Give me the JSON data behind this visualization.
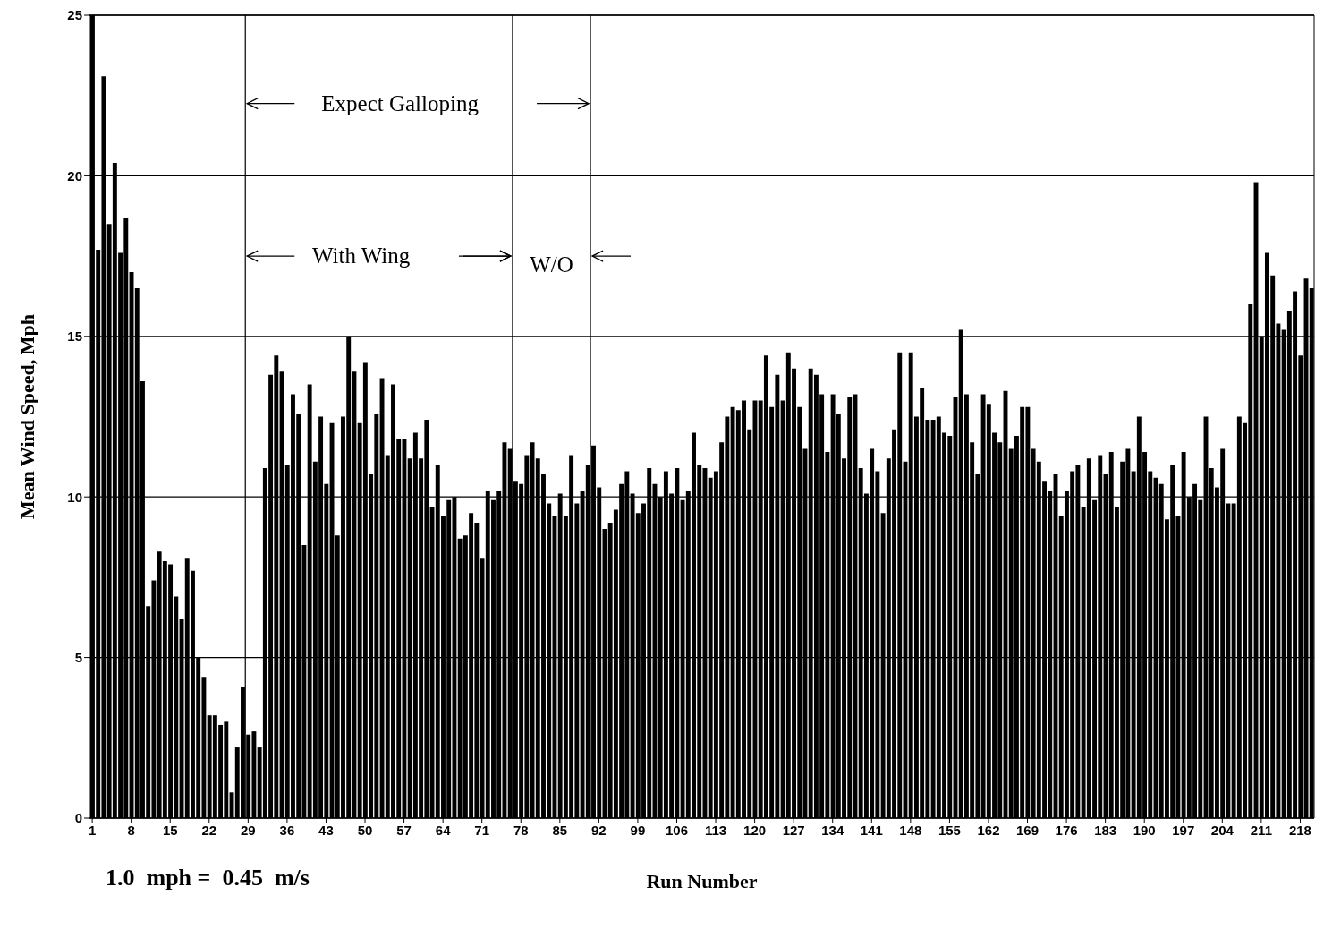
{
  "chart_data": {
    "type": "bar",
    "xlabel": "Run Number",
    "ylabel": "Mean Wind Speed, Mph",
    "color": "#000000",
    "grid": "y",
    "x": [
      1,
      2,
      3,
      4,
      5,
      6,
      7,
      8,
      9,
      10,
      11,
      12,
      13,
      14,
      15,
      16,
      17,
      18,
      19,
      20,
      21,
      22,
      23,
      24,
      25,
      26,
      27,
      28,
      29,
      30,
      31,
      32,
      33,
      34,
      35,
      36,
      37,
      38,
      39,
      40,
      41,
      42,
      43,
      44,
      45,
      46,
      47,
      48,
      49,
      50,
      51,
      52,
      53,
      54,
      55,
      56,
      57,
      58,
      59,
      60,
      61,
      62,
      63,
      64,
      65,
      66,
      67,
      68,
      69,
      70,
      71,
      72,
      73,
      74,
      75,
      76,
      77,
      78,
      79,
      80,
      81,
      82,
      83,
      84,
      85,
      86,
      87,
      88,
      89,
      90,
      91,
      92,
      93,
      94,
      95,
      96,
      97,
      98,
      99,
      100,
      101,
      102,
      103,
      104,
      105,
      106,
      107,
      108,
      109,
      110,
      111,
      112,
      113,
      114,
      115,
      116,
      117,
      118,
      119,
      120,
      121,
      122,
      123,
      124,
      125,
      126,
      127,
      128,
      129,
      130,
      131,
      132,
      133,
      134,
      135,
      136,
      137,
      138,
      139,
      140,
      141,
      142,
      143,
      144,
      145,
      146,
      147,
      148,
      149,
      150,
      151,
      152,
      153,
      154,
      155,
      156,
      157,
      158,
      159,
      160,
      161,
      162,
      163,
      164,
      165,
      166,
      167,
      168,
      169,
      170,
      171,
      172,
      173,
      174,
      175,
      176,
      177,
      178,
      179,
      180,
      181,
      182,
      183,
      184,
      185,
      186,
      187,
      188,
      189,
      190,
      191,
      192,
      193,
      194,
      195,
      196,
      197,
      198,
      199,
      200,
      201,
      202,
      203,
      204,
      205,
      206,
      207,
      208,
      209,
      210,
      211,
      212,
      213,
      214,
      215,
      216,
      217,
      218,
      219,
      220
    ],
    "values": [
      25,
      17.7,
      23.1,
      18.5,
      20.4,
      17.6,
      18.7,
      17.0,
      16.5,
      13.6,
      6.6,
      7.4,
      8.3,
      8.0,
      7.9,
      6.9,
      6.2,
      8.1,
      7.7,
      5.0,
      4.4,
      3.2,
      3.2,
      2.9,
      3.0,
      0.8,
      2.2,
      4.1,
      2.6,
      2.7,
      2.2,
      10.9,
      13.8,
      14.4,
      13.9,
      11.0,
      13.2,
      12.6,
      8.5,
      13.5,
      11.1,
      12.5,
      10.4,
      12.3,
      8.8,
      12.5,
      15.0,
      13.9,
      12.3,
      14.2,
      10.7,
      12.6,
      13.7,
      11.3,
      13.5,
      11.8,
      11.8,
      11.2,
      12.0,
      11.2,
      12.4,
      9.7,
      11.0,
      9.4,
      9.9,
      10.0,
      8.7,
      8.8,
      9.5,
      9.2,
      8.1,
      10.2,
      9.9,
      10.2,
      11.7,
      11.5,
      10.5,
      10.4,
      11.3,
      11.7,
      11.2,
      10.7,
      9.8,
      9.4,
      10.1,
      9.4,
      11.3,
      9.8,
      10.2,
      11.0,
      11.6,
      10.3,
      9.0,
      9.2,
      9.6,
      10.4,
      10.8,
      10.1,
      9.5,
      9.8,
      10.9,
      10.4,
      10.0,
      10.8,
      10.1,
      10.9,
      9.9,
      10.2,
      12.0,
      11.0,
      10.9,
      10.6,
      10.8,
      11.7,
      12.5,
      12.8,
      12.7,
      13.0,
      12.1,
      13.0,
      13.0,
      14.4,
      12.8,
      13.8,
      13.0,
      14.5,
      14.0,
      12.8,
      11.5,
      14.0,
      13.8,
      13.2,
      11.4,
      13.2,
      12.6,
      11.2,
      13.1,
      13.2,
      10.9,
      10.1,
      11.5,
      10.8,
      9.5,
      11.2,
      12.1,
      14.5,
      11.1,
      14.5,
      12.5,
      13.4,
      12.4,
      12.4,
      12.5,
      12.0,
      11.9,
      13.1,
      15.2,
      13.2,
      11.7,
      10.7,
      13.2,
      12.9,
      12.0,
      11.7,
      13.3,
      11.5,
      11.9,
      12.8,
      12.8,
      11.5,
      11.1,
      10.5,
      10.2,
      10.7,
      9.4,
      10.2,
      10.8,
      11.0,
      9.7,
      11.2,
      9.9,
      11.3,
      10.7,
      11.4,
      9.7,
      11.1,
      11.5,
      10.8,
      12.5,
      11.4,
      10.8,
      10.6,
      10.4,
      9.3,
      11.0,
      9.4,
      11.4,
      10.0,
      10.4,
      9.9,
      12.5,
      10.9,
      10.3,
      11.5,
      9.8,
      9.8,
      12.5,
      12.3,
      16.0,
      19.8,
      15.0,
      17.6,
      16.9,
      15.4,
      15.2,
      15.8,
      16.4,
      14.4,
      16.8,
      16.5
    ],
    "xlim": [
      0.5,
      220.5
    ],
    "xticks": [
      1,
      8,
      15,
      22,
      29,
      36,
      43,
      50,
      57,
      64,
      71,
      78,
      85,
      92,
      99,
      106,
      113,
      120,
      127,
      134,
      141,
      148,
      155,
      162,
      169,
      176,
      183,
      190,
      197,
      204,
      211,
      218
    ],
    "ylim": [
      0,
      25
    ],
    "yticks": [
      0,
      5,
      10,
      15,
      20,
      25
    ],
    "ref_lines": [
      {
        "axis": "x",
        "value": 28.5,
        "color": "#000000"
      },
      {
        "axis": "x",
        "value": 76.5,
        "color": "#000000"
      },
      {
        "axis": "x",
        "value": 90.5,
        "color": "#000000"
      }
    ],
    "annotations": [
      "Expect Galloping",
      "With Wing",
      "W/O",
      "1.0  mph =  0.45  m/s"
    ]
  }
}
